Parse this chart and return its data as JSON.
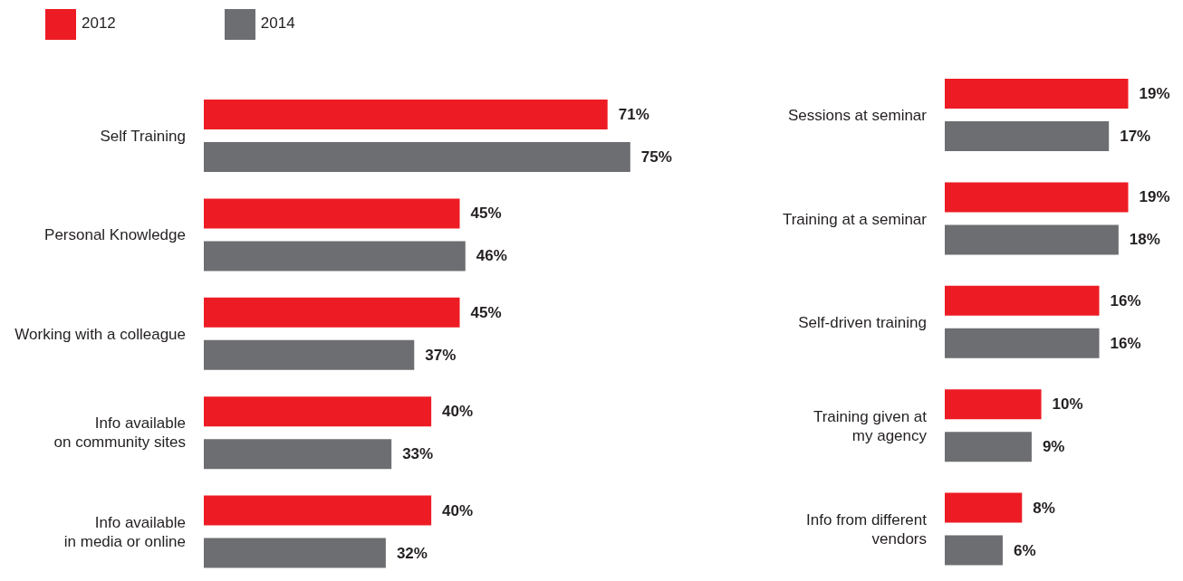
{
  "chart_data": [
    {
      "type": "bar",
      "orientation": "horizontal",
      "legend": "top left",
      "categories": [
        "Self Training",
        "Personal Knowledge",
        "Working with a colleague",
        "Info available\non community sites",
        "Info available\nin media or online"
      ],
      "series": [
        {
          "name": "2012",
          "color": "#ed1c24",
          "values": [
            71,
            45,
            45,
            40,
            40
          ],
          "value_labels": [
            "71%",
            "45%",
            "45%",
            "40%",
            "40%"
          ]
        },
        {
          "name": "2014",
          "color": "#6d6e71",
          "values": [
            75,
            46,
            37,
            33,
            32
          ],
          "value_labels": [
            "75%",
            "46%",
            "37%",
            "33%",
            "32%"
          ]
        }
      ]
    },
    {
      "type": "bar",
      "orientation": "horizontal",
      "categories": [
        "Sessions at seminar",
        "Training at a seminar",
        "Self-driven training",
        "Training given at\nmy agency",
        "Info from different\nvendors"
      ],
      "series": [
        {
          "color": "#ed1c24",
          "values": [
            19,
            19,
            16,
            10,
            8
          ],
          "value_labels": [
            "19%",
            "19%",
            "16%",
            "10%",
            "8%"
          ]
        },
        {
          "color": "#6d6e71",
          "values": [
            17,
            18,
            16,
            9,
            6
          ],
          "value_labels": [
            "17%",
            "18%",
            "16%",
            "9%",
            "6%"
          ]
        }
      ]
    }
  ]
}
